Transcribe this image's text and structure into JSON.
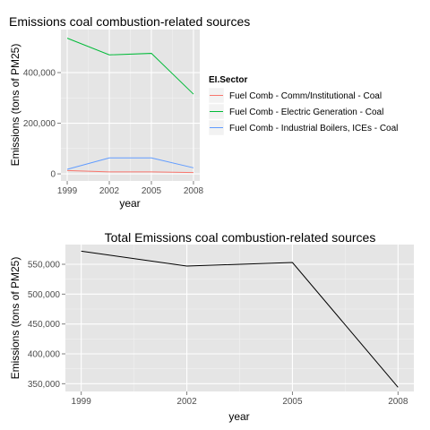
{
  "chart_data": [
    {
      "type": "line",
      "title": "Emissions coal combustion-related sources",
      "xlabel": "year",
      "ylabel": "Emissions (tons of PM25)",
      "x": [
        1999,
        2002,
        2005,
        2008
      ],
      "x_tick_labels": [
        "1999",
        "2002",
        "2005",
        "2008"
      ],
      "y_tick_values": [
        0,
        200000,
        400000
      ],
      "y_tick_labels": [
        "0",
        "200,000",
        "400,000"
      ],
      "ylim": [
        -28000,
        570000
      ],
      "grid": true,
      "legend": {
        "title": "EI.Sector",
        "placement": "right"
      },
      "series": [
        {
          "name": "Fuel Comb - Comm/Institutional - Coal",
          "color": "#F8766D",
          "values": [
            13000,
            8000,
            8000,
            5000
          ]
        },
        {
          "name": "Fuel Comb - Electric Generation - Coal",
          "color": "#00BA38",
          "values": [
            536000,
            470000,
            476000,
            315000
          ]
        },
        {
          "name": "Fuel Comb - Industrial Boilers, ICEs - Coal",
          "color": "#619CFF",
          "values": [
            18000,
            63000,
            63000,
            24000
          ]
        }
      ]
    },
    {
      "type": "line",
      "title": "Total Emissions coal combustion-related sources",
      "xlabel": "year",
      "ylabel": "Emissions (tons of PM25)",
      "x": [
        1999,
        2002,
        2005,
        2008
      ],
      "x_tick_labels": [
        "1999",
        "2002",
        "2005",
        "2008"
      ],
      "y_tick_values": [
        350000,
        400000,
        450000,
        500000,
        550000
      ],
      "y_tick_labels": [
        "350,000",
        "400,000",
        "450,000",
        "500,000",
        "550,000"
      ],
      "ylim": [
        337000,
        583000
      ],
      "grid": true,
      "series": [
        {
          "color": "#000000",
          "values": [
            572000,
            547000,
            553000,
            344000
          ]
        }
      ]
    }
  ]
}
